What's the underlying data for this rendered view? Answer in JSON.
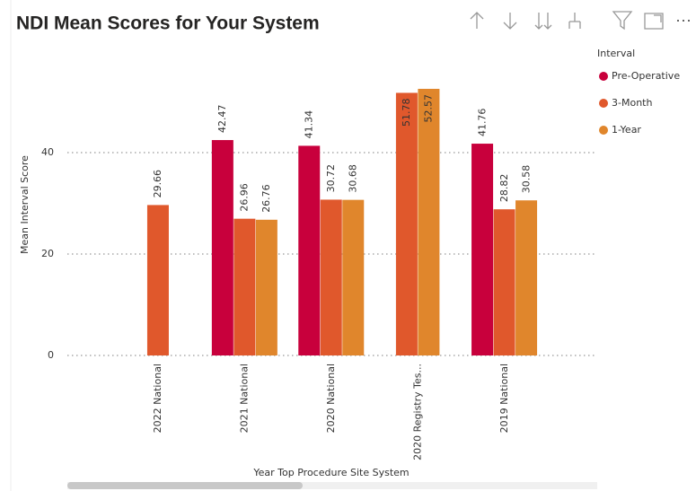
{
  "chart_data": {
    "type": "bar",
    "title": "NDI Mean Scores for Your System",
    "x_label": "Year Top Procedure Site System",
    "y_label": "Mean Interval Score",
    "legend_title": "Interval",
    "legend": "top-right",
    "grid": true,
    "categories": [
      "2022 National",
      "2021 National",
      "2020 National",
      "2020 Registry Tes...",
      "2019 National"
    ],
    "series": [
      {
        "name": "Pre-Operative",
        "color": "#c8003c",
        "values": [
          null,
          42.47,
          41.34,
          null,
          41.76
        ]
      },
      {
        "name": "3-Month",
        "color": "#e0582c",
        "values": [
          29.66,
          26.96,
          30.72,
          51.78,
          28.82
        ]
      },
      {
        "name": "1-Year",
        "color": "#e0862c",
        "values": [
          null,
          26.76,
          30.68,
          52.57,
          30.58
        ]
      }
    ],
    "ylim": [
      0,
      60
    ],
    "yticks": [
      0,
      20,
      40
    ]
  }
}
